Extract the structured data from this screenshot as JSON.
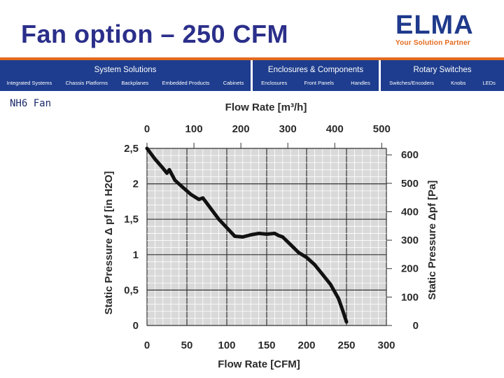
{
  "header": {
    "title": "Fan option – 250 CFM",
    "logo_text": "ELMA",
    "logo_tagline": "Your Solution Partner"
  },
  "nav": {
    "groups": [
      {
        "title": "System Solutions",
        "items": [
          "Integrated Systems",
          "Chassis Platforms",
          "Backplanes",
          "Embedded Products",
          "Cabinets"
        ]
      },
      {
        "title": "Enclosures & Components",
        "items": [
          "Enclosures",
          "Front Panels",
          "Handles"
        ]
      },
      {
        "title": "Rotary Switches",
        "items": [
          "Switches/Encoders",
          "Knobs",
          "LEDs"
        ]
      }
    ]
  },
  "subtitle": "NH6 Fan",
  "colors": {
    "title": "#2b2f8a",
    "nav_bg": "#1e3d8e",
    "accent": "#e36a1e",
    "logo": "#1f3a8c",
    "curve": "#111111",
    "chart_bg": "#d9d9d9"
  },
  "chart_data": {
    "type": "line",
    "title": "",
    "xlabel": "Flow Rate [CFM]",
    "ylabel": "Static Pressure  Δ pf [in H2O]",
    "top_axis_label": "Flow Rate [m³/h]",
    "right_axis_label": "Static Pressure  Δpf [Pa]",
    "xlim": [
      0,
      300
    ],
    "ylim": [
      0,
      2.5
    ],
    "x_ticks": [
      0,
      50,
      100,
      150,
      200,
      250,
      300
    ],
    "x_tick_labels": [
      "0",
      "50",
      "100",
      "150",
      "200",
      "250",
      "300"
    ],
    "y_ticks": [
      0,
      0.5,
      1,
      1.5,
      2,
      2.5
    ],
    "y_tick_labels": [
      "0",
      "0,5",
      "1",
      "1,5",
      "2",
      "2,5"
    ],
    "top_ticks": [
      0,
      100,
      200,
      300,
      400,
      500
    ],
    "top_tick_labels": [
      "0",
      "100",
      "200",
      "300",
      "400",
      "500"
    ],
    "top_lim": [
      0,
      510
    ],
    "right_ticks": [
      0,
      100,
      200,
      300,
      400,
      500,
      600
    ],
    "right_tick_labels": [
      "0",
      "100",
      "200",
      "300",
      "400",
      "500",
      "600"
    ],
    "right_lim": [
      0,
      622.7
    ],
    "grid": true,
    "series": [
      {
        "x": [
          0,
          10,
          20,
          25,
          28,
          35,
          45,
          55,
          65,
          70,
          80,
          90,
          100,
          110,
          120,
          130,
          140,
          150,
          160,
          165,
          170,
          180,
          190,
          200,
          210,
          220,
          230,
          240,
          245,
          250
        ],
        "y": [
          2.5,
          2.35,
          2.22,
          2.15,
          2.2,
          2.05,
          1.95,
          1.85,
          1.78,
          1.8,
          1.65,
          1.5,
          1.38,
          1.26,
          1.25,
          1.28,
          1.3,
          1.29,
          1.3,
          1.27,
          1.25,
          1.14,
          1.03,
          0.96,
          0.86,
          0.72,
          0.58,
          0.38,
          0.22,
          0.05
        ]
      }
    ]
  }
}
